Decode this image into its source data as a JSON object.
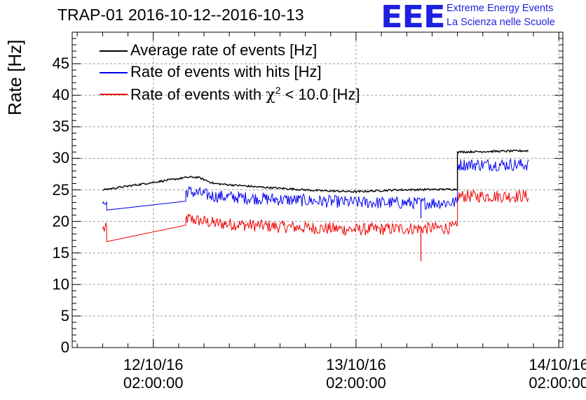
{
  "chart_data": {
    "type": "line",
    "title": "TRAP-01 2016-10-12--2016-10-13",
    "ylabel": "Rate [Hz]",
    "xlabel": "",
    "ylim": [
      0,
      50
    ],
    "yticks": [
      0,
      5,
      10,
      15,
      20,
      25,
      30,
      35,
      40,
      45
    ],
    "xlim": [
      -0.4,
      2.02
    ],
    "xticks": [
      {
        "x": 0,
        "line1": "12/10/16",
        "line2": "02:00:00"
      },
      {
        "x": 1,
        "line1": "13/10/16",
        "line2": "02:00:00"
      },
      {
        "x": 2,
        "line1": "14/10/16",
        "line2": "02:00:00"
      }
    ],
    "grid": true,
    "legend_position": "top-left",
    "series": [
      {
        "name": "Average rate of events [Hz]",
        "color": "#000000",
        "noise": 0.15,
        "points": [
          [
            -0.25,
            25.0
          ],
          [
            0.17,
            27.0
          ],
          [
            0.22,
            27.0
          ],
          [
            0.3,
            26.0
          ],
          [
            0.5,
            25.5
          ],
          [
            0.8,
            24.9
          ],
          [
            1.0,
            24.7
          ],
          [
            1.2,
            25.0
          ],
          [
            1.5,
            25.1
          ],
          [
            1.5,
            31.0
          ],
          [
            1.85,
            31.2
          ]
        ]
      },
      {
        "name": "Rate of events with hits [Hz]",
        "color": "#0000ee",
        "noise": 1.0,
        "points": [
          [
            -0.25,
            22.8
          ],
          [
            -0.23,
            22.8
          ],
          [
            -0.23,
            21.8
          ],
          [
            0.16,
            23.2
          ],
          [
            0.16,
            24.8
          ],
          [
            0.3,
            24.0
          ],
          [
            0.6,
            23.5
          ],
          [
            1.0,
            23.0
          ],
          [
            1.3,
            22.9
          ],
          [
            1.5,
            23.0
          ],
          [
            1.5,
            29.0
          ],
          [
            1.85,
            29.0
          ]
        ]
      },
      {
        "name": "Rate of events with χ² < 10.0 [Hz]",
        "color": "#ee0000",
        "noise": 1.0,
        "points": [
          [
            -0.25,
            18.8
          ],
          [
            -0.23,
            18.8
          ],
          [
            -0.23,
            16.8
          ],
          [
            0.16,
            19.4
          ],
          [
            0.16,
            20.5
          ],
          [
            0.3,
            19.7
          ],
          [
            0.6,
            19.2
          ],
          [
            1.0,
            18.7
          ],
          [
            1.3,
            18.9
          ],
          [
            1.5,
            19.0
          ],
          [
            1.5,
            24.0
          ],
          [
            1.85,
            24.0
          ]
        ]
      }
    ]
  },
  "legend": {
    "avg": "Average rate of events [Hz]",
    "hits_prefix": "Rate of events with hits [Hz]",
    "chi_prefix": "Rate of events with ",
    "chi_symbol": "χ",
    "chi_sup": "2",
    "chi_suffix": " < 10.0 [Hz]"
  },
  "logo": {
    "mark": "EEE",
    "line1": "Extreme Energy Events",
    "line2": "La Scienza nelle Scuole"
  },
  "colors": {
    "accent": "#1f1fe0"
  }
}
